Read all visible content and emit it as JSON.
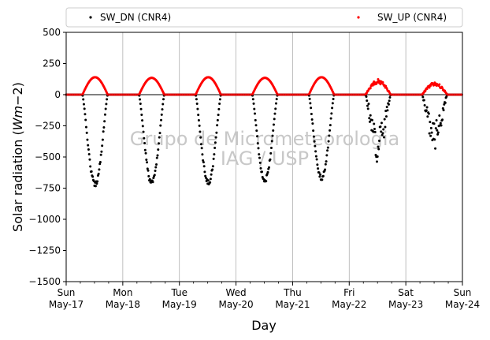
{
  "chart_data": {
    "type": "scatter",
    "xlabel": "Day",
    "ylabel_main": "Solar radiation (",
    "ylabel_unit_italic": "Wm",
    "ylabel_exponent": "−2",
    "ylabel_close": ")",
    "ylim": [
      -1500,
      500
    ],
    "yticks": [
      500,
      250,
      0,
      -250,
      -500,
      -750,
      -1000,
      -1250,
      -1500
    ],
    "ytick_labels": [
      "500",
      "250",
      "0",
      "−250",
      "−500",
      "−750",
      "−1000",
      "−1250",
      "−1500"
    ],
    "xlim_days": [
      0,
      7
    ],
    "xticks": [
      {
        "day": "Sun",
        "date": "May-17"
      },
      {
        "day": "Mon",
        "date": "May-18"
      },
      {
        "day": "Tue",
        "date": "May-19"
      },
      {
        "day": "Wed",
        "date": "May-20"
      },
      {
        "day": "Thu",
        "date": "May-21"
      },
      {
        "day": "Fri",
        "date": "May-22"
      },
      {
        "day": "Sat",
        "date": "May-23"
      },
      {
        "day": "Sun",
        "date": "May-24"
      }
    ],
    "grid": "vertical major ticks",
    "zero_line": true,
    "legend_placement": "top, above plot",
    "watermark": [
      "Grupo de Micrometeorologia",
      "IAG / USP"
    ],
    "series": [
      {
        "name": "SW_DN (CNR4)",
        "color": "#000000",
        "marker": "dot",
        "daily_min_W_m2": [
          -740,
          -730,
          -730,
          -710,
          -690,
          -560,
          -440
        ]
      },
      {
        "name": "SW_UP (CNR4)",
        "color": "#ff0000",
        "marker": "dot",
        "daily_max_W_m2": [
          140,
          135,
          140,
          135,
          140,
          125,
          100
        ]
      }
    ],
    "sunrise_hour": 6.9,
    "sunset_hour": 17.6
  }
}
